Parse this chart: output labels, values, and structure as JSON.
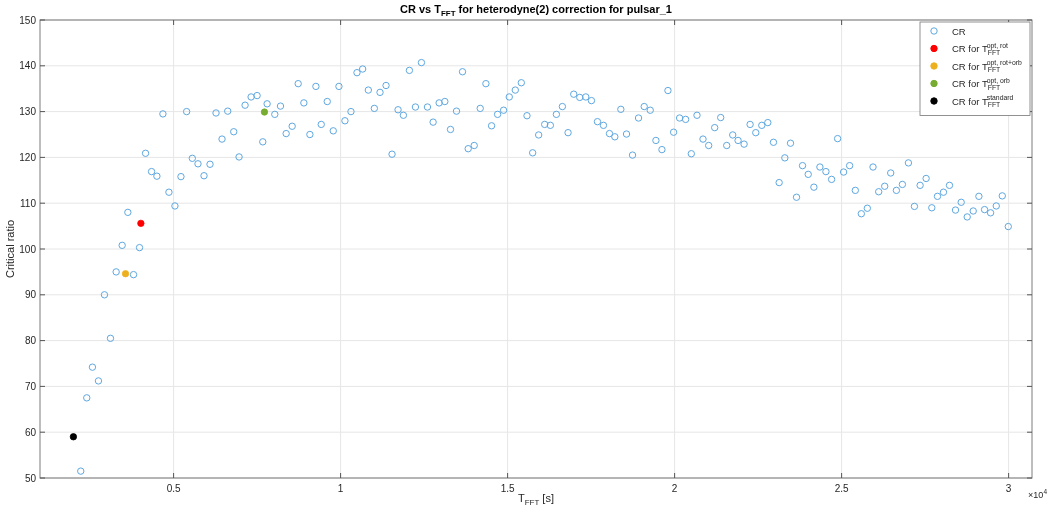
{
  "chart_data": {
    "type": "scatter",
    "title": "CR vs T$_{FFT}$ for heterodyne(2) correction for pulsar_1",
    "xlabel": "T$_{FFT}$ [s]",
    "ylabel": "Critical ratio",
    "annotations": [
      "×10$^{4}$"
    ],
    "xlim": [
      0.1,
      3.07
    ],
    "ylim": [
      50,
      150
    ],
    "xticks": [
      0.5,
      1,
      1.5,
      2,
      2.5,
      3
    ],
    "yticks": [
      50,
      60,
      70,
      80,
      90,
      100,
      110,
      120,
      130,
      140,
      150
    ],
    "grid": true,
    "legend": "top right",
    "marker": "circle",
    "series": [
      {
        "name": "CR",
        "color": "#5fa8e0",
        "x": [
          0.222,
          0.24,
          0.257,
          0.275,
          0.293,
          0.311,
          0.328,
          0.346,
          0.363,
          0.38,
          0.398,
          0.416,
          0.434,
          0.45,
          0.468,
          0.486,
          0.504,
          0.522,
          0.539,
          0.556,
          0.573,
          0.591,
          0.609,
          0.627,
          0.645,
          0.662,
          0.68,
          0.696,
          0.714,
          0.732,
          0.75,
          0.767,
          0.78,
          0.803,
          0.82,
          0.837,
          0.855,
          0.873,
          0.89,
          0.908,
          0.926,
          0.942,
          0.96,
          0.978,
          0.995,
          1.013,
          1.031,
          1.049,
          1.066,
          1.083,
          1.101,
          1.118,
          1.136,
          1.154,
          1.172,
          1.188,
          1.206,
          1.224,
          1.242,
          1.26,
          1.277,
          1.295,
          1.312,
          1.329,
          1.347,
          1.365,
          1.382,
          1.4,
          1.418,
          1.435,
          1.452,
          1.47,
          1.488,
          1.505,
          1.523,
          1.541,
          1.558,
          1.575,
          1.593,
          1.611,
          1.628,
          1.646,
          1.664,
          1.681,
          1.698,
          1.716,
          1.734,
          1.751,
          1.769,
          1.787,
          1.805,
          1.821,
          1.839,
          1.856,
          1.874,
          1.892,
          1.909,
          1.927,
          1.944,
          1.962,
          1.98,
          1.997,
          2.015,
          2.033,
          2.05,
          2.067,
          2.085,
          2.102,
          2.12,
          2.138,
          2.156,
          2.174,
          2.19,
          2.208,
          2.226,
          2.243,
          2.261,
          2.279,
          2.296,
          2.313,
          2.33,
          2.347,
          2.365,
          2.383,
          2.4,
          2.417,
          2.435,
          2.453,
          2.47,
          2.488,
          2.506,
          2.524,
          2.541,
          2.559,
          2.577,
          2.594,
          2.611,
          2.629,
          2.647,
          2.664,
          2.682,
          2.7,
          2.718,
          2.735,
          2.753,
          2.77,
          2.787,
          2.805,
          2.823,
          2.841,
          2.858,
          2.876,
          2.894,
          2.911,
          2.928,
          2.946,
          2.963,
          2.981,
          2.999
        ],
        "values": [
          51.5,
          67.5,
          74.2,
          71.2,
          90.0,
          80.5,
          95.0,
          100.8,
          108.0,
          94.4,
          100.3,
          120.9,
          116.9,
          115.9,
          129.5,
          112.4,
          109.4,
          115.8,
          130.0,
          119.8,
          118.6,
          116.0,
          118.5,
          129.7,
          124.0,
          130.1,
          125.6,
          120.1,
          131.4,
          133.2,
          133.5,
          123.4,
          131.7,
          129.4,
          131.2,
          125.2,
          126.8,
          136.1,
          131.9,
          125.0,
          135.5,
          127.2,
          132.2,
          125.8,
          135.5,
          128.0,
          130.0,
          138.5,
          139.3,
          134.7,
          130.7,
          134.2,
          135.7,
          120.7,
          130.4,
          129.2,
          139.0,
          131.0,
          140.7,
          131.0,
          127.7,
          131.9,
          132.2,
          126.1,
          130.1,
          138.7,
          121.9,
          122.6,
          130.7,
          136.1,
          126.9,
          129.4,
          130.3,
          133.2,
          134.7,
          136.3,
          129.1,
          121.0,
          124.9,
          127.2,
          127.0,
          129.4,
          131.1,
          125.4,
          133.8,
          133.1,
          133.2,
          132.4,
          127.8,
          127.0,
          125.2,
          124.5,
          130.5,
          125.1,
          120.5,
          128.6,
          131.1,
          130.3,
          123.7,
          121.7,
          134.6,
          125.5,
          128.6,
          128.3,
          120.8,
          129.2,
          124.0,
          122.6,
          126.5,
          128.7,
          122.6,
          124.9,
          123.7,
          122.9,
          127.2,
          125.4,
          127.0,
          127.6,
          123.3,
          114.5,
          119.9,
          123.1,
          111.3,
          118.2,
          116.3,
          113.5,
          117.9,
          116.9,
          115.2,
          124.1,
          116.8,
          118.2,
          112.8,
          107.7,
          108.9,
          117.9,
          112.5,
          113.7,
          116.6,
          112.8,
          114.1,
          118.8,
          109.3,
          113.9,
          115.4,
          109.0,
          111.5,
          112.4,
          113.9,
          108.5,
          110.2,
          107.0,
          108.3,
          111.5,
          108.6,
          107.9,
          109.4,
          111.6,
          104.9
        ]
      },
      {
        "name": "CR for T$_{FFT}$$^{opt, rot}$",
        "color": "#ff0000",
        "x": [
          0.402
        ],
        "values": [
          105.6
        ]
      },
      {
        "name": "CR for T$_{FFT}$$^{opt, rot+orb}$",
        "color": "#edb120",
        "x": [
          0.356
        ],
        "values": [
          94.6
        ]
      },
      {
        "name": "CR for T$_{FFT}$$^{opt, orb}$",
        "color": "#77ac30",
        "x": [
          0.772
        ],
        "values": [
          129.9
        ]
      },
      {
        "name": "CR for T$_{FFT}$$^{standard}$",
        "color": "#000000",
        "x": [
          0.2
        ],
        "values": [
          59
        ]
      }
    ]
  }
}
